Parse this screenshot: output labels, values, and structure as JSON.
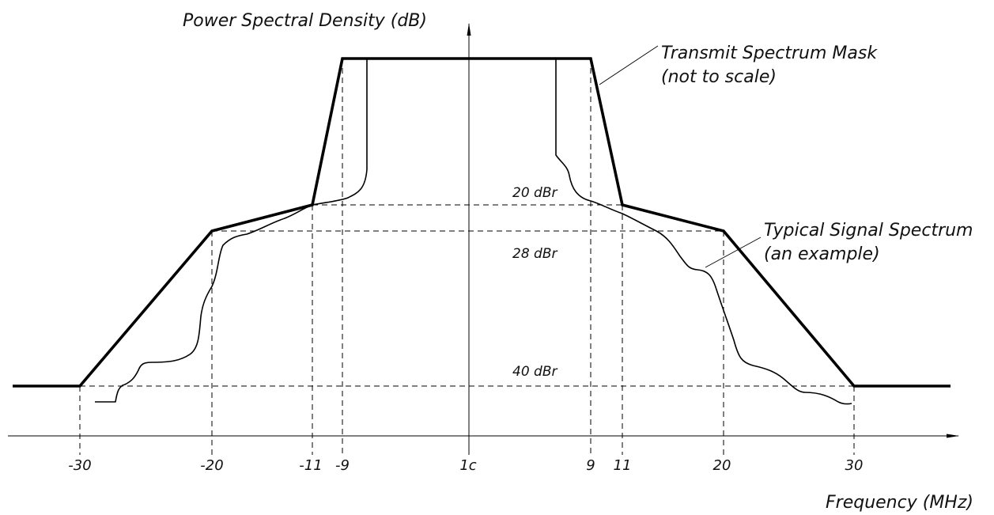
{
  "figure": {
    "y_axis_title": "Power Spectral Density (dB)",
    "x_axis_title": "Frequency (MHz)",
    "mask_label_line1": "Transmit Spectrum Mask",
    "mask_label_line2": "(not to scale)",
    "signal_label_line1": "Typical Signal Spectrum",
    "signal_label_line2": "(an example)",
    "level_labels": [
      "20 dBr",
      "28 dBr",
      "40 dBr"
    ],
    "tick_labels": [
      "-30",
      "-20",
      "-11",
      "-9",
      "1c",
      "9",
      "11",
      "20",
      "30"
    ]
  },
  "chart_data": {
    "type": "line",
    "x_ticks": [
      -30,
      -20,
      -11,
      -9,
      0,
      9,
      11,
      20,
      30
    ],
    "x_tick_labels": [
      "-30",
      "-20",
      "-11",
      "-9",
      "1c",
      "9",
      "11",
      "20",
      "30"
    ],
    "xlabel": "Frequency (MHz)",
    "ylabel": "Power Spectral Density (dB)",
    "y_levels_dBr": [
      0,
      -20,
      -28,
      -40
    ],
    "series": [
      {
        "name": "Transmit Spectrum Mask",
        "x": [
          -30,
          -20,
          -11,
          -9,
          9,
          11,
          20,
          30
        ],
        "y_dBr": [
          -40,
          -28,
          -20,
          0,
          0,
          -20,
          -28,
          -40
        ]
      },
      {
        "name": "Typical Signal Spectrum"
      }
    ]
  }
}
